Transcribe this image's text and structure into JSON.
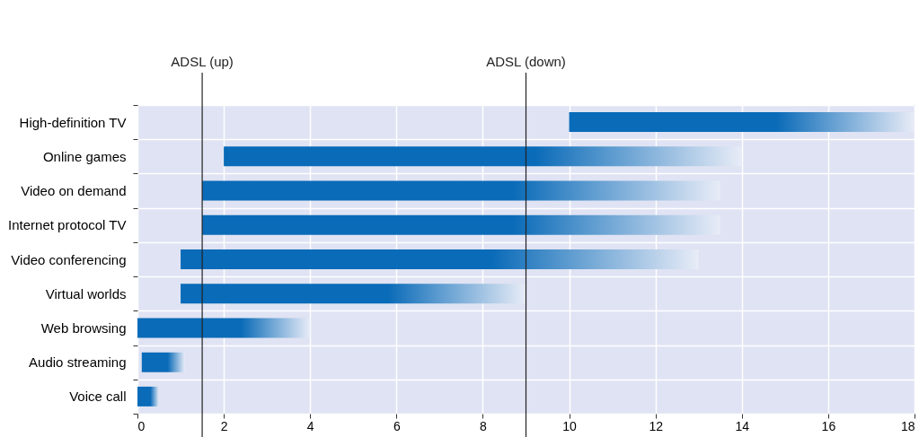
{
  "chart_data": {
    "type": "bar",
    "orientation": "horizontal",
    "categories": [
      "High-definition TV",
      "Online games",
      "Video on demand",
      "Internet protocol TV",
      "Video conferencing",
      "Virtual worlds",
      "Web browsing",
      "Audio streaming",
      "Voice call"
    ],
    "base": [
      10,
      2,
      1.5,
      1.5,
      1,
      1,
      0,
      0.1,
      0
    ],
    "values": [
      8,
      12,
      12,
      12,
      12,
      8,
      4,
      1,
      0.5
    ],
    "color": "#0a6bb8",
    "xlim": [
      0,
      18
    ],
    "xticks": [
      0,
      2,
      4,
      6,
      8,
      10,
      12,
      14,
      16,
      18
    ],
    "grid": true,
    "ref_lines": [
      {
        "axis": "x",
        "value": 1.5,
        "label": "ADSL (up)"
      },
      {
        "axis": "x",
        "value": 9,
        "label": "ADSL (down)"
      }
    ]
  }
}
